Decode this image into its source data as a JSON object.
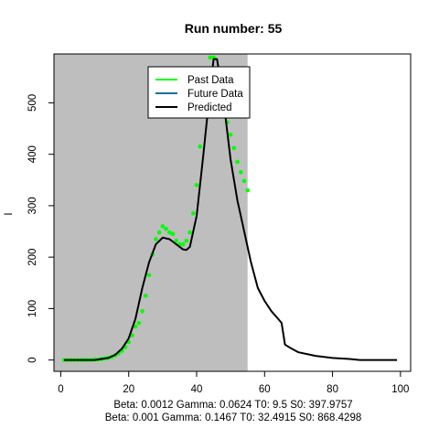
{
  "chart_data": {
    "type": "line",
    "title": "Run number:  55",
    "xlabel": "",
    "ylabel": "I",
    "footer_lines": [
      "Beta:  0.0012 Gamma:  0.0624 T0:  9.5 S0:  397.9757",
      "Beta:  0.001 Gamma:  0.1467 T0:  32.4915 S0:  868.4298"
    ],
    "xlim": [
      -2,
      103
    ],
    "ylim": [
      -22,
      595
    ],
    "x_ticks": [
      0,
      20,
      40,
      60,
      80,
      100
    ],
    "y_ticks": [
      0,
      100,
      200,
      300,
      400,
      500
    ],
    "shaded_region": {
      "x_from": -2,
      "x_to": 55,
      "color": "#bebebe"
    },
    "legend": {
      "position": "top",
      "entries": [
        {
          "label": "Past Data",
          "color": "#00ff00"
        },
        {
          "label": "Future Data",
          "color": "#1a6e9e"
        },
        {
          "label": "Predicted",
          "color": "#000000"
        }
      ]
    },
    "series": [
      {
        "name": "Past Data",
        "kind": "points",
        "color": "#00ff00",
        "x": [
          1,
          2,
          3,
          4,
          5,
          6,
          7,
          8,
          9,
          10,
          11,
          12,
          13,
          14,
          15,
          16,
          17,
          18,
          19,
          20,
          21,
          22,
          23,
          24,
          25,
          26,
          27,
          28,
          29,
          30,
          31,
          32,
          33,
          34,
          35,
          36,
          37,
          38,
          39,
          40,
          41,
          42,
          43,
          44,
          45,
          46,
          47,
          48,
          49,
          50,
          51,
          52,
          53,
          54,
          55
        ],
        "y": [
          0,
          0,
          0,
          0,
          0,
          0,
          0,
          0,
          0,
          1,
          1,
          2,
          3,
          4,
          6,
          9,
          13,
          18,
          25,
          35,
          48,
          65,
          72,
          95,
          125,
          165,
          205,
          235,
          248,
          260,
          255,
          248,
          245,
          232,
          225,
          225,
          232,
          248,
          285,
          340,
          415,
          500,
          560,
          588,
          588,
          565,
          525,
          495,
          462,
          438,
          412,
          385,
          365,
          348,
          330
        ]
      },
      {
        "name": "Future Data",
        "kind": "line",
        "color": "#1a6e9e",
        "x": [],
        "y": []
      },
      {
        "name": "Predicted",
        "kind": "line",
        "color": "#000000",
        "x": [
          1,
          5,
          10,
          14,
          16,
          18,
          20,
          22,
          24,
          26,
          28,
          30,
          32,
          34,
          36,
          37,
          38,
          40,
          42,
          44,
          45,
          46,
          48,
          50,
          52,
          54,
          56,
          58,
          60,
          62,
          64,
          65,
          66,
          68,
          70,
          75,
          80,
          85,
          88,
          90,
          95,
          99
        ],
        "y": [
          0,
          0,
          0,
          4,
          10,
          22,
          42,
          80,
          140,
          190,
          225,
          238,
          235,
          225,
          215,
          214,
          220,
          280,
          400,
          530,
          585,
          585,
          500,
          390,
          310,
          250,
          190,
          140,
          115,
          95,
          80,
          72,
          30,
          22,
          15,
          8,
          4,
          2,
          0,
          0,
          0,
          0
        ]
      }
    ]
  }
}
